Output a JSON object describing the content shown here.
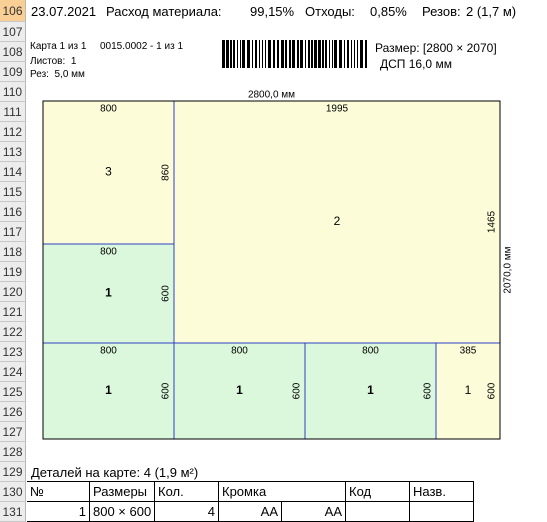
{
  "row_numbers": [
    106,
    107,
    108,
    109,
    110,
    111,
    112,
    113,
    114,
    115,
    116,
    117,
    118,
    119,
    120,
    121,
    122,
    123,
    124,
    125,
    126,
    127,
    128,
    129,
    130,
    131
  ],
  "header": {
    "date": "23.07.2021",
    "material_label": "Расход материала:",
    "material": "99,15%",
    "waste_label": "Отходы:",
    "waste": "0,85%",
    "cuts_label": "Резов:",
    "cuts": "2 (1,7 м)"
  },
  "card": {
    "card": "Карта 1 из 1",
    "code": "0015.0002 - 1 из 1",
    "sheets": "Листов:  1",
    "kerf": "Рез:  5,0 мм",
    "size": "Размер: [2800 × 2070]",
    "material": "ДСП 16,0 мм"
  },
  "map": {
    "width_label": "2800,0 мм",
    "height_label": "2070,0 мм",
    "pieces": [
      {
        "id": "3",
        "width": "800",
        "height": "860",
        "color": "#fdfcd9",
        "bold": false
      },
      {
        "id": "2",
        "width": "1995",
        "height": "1465",
        "color": "#fdfcd9",
        "bold": false
      },
      {
        "id": "1",
        "width": "800",
        "height": "600",
        "color": "#dcf8dc",
        "bold": true
      },
      {
        "id": "1",
        "width": "800",
        "height": "600",
        "color": "#dcf8dc",
        "bold": true
      },
      {
        "id": "1",
        "width": "800",
        "height": "600",
        "color": "#dcf8dc",
        "bold": true
      },
      {
        "id": "1",
        "width": "800",
        "height": "600",
        "color": "#dcf8dc",
        "bold": true
      },
      {
        "id": "1",
        "width": "385",
        "height": "600",
        "color": "#fdfcd9",
        "bold": false
      }
    ]
  },
  "summary": "Деталей на карте: 4 (1,9 м²)",
  "table": {
    "headers": [
      "№",
      "Размеры",
      "Кол.",
      "Кромка",
      "Код",
      "Назв."
    ],
    "rows": [
      [
        "1",
        "800 × 600",
        "4",
        "AA",
        "AA",
        "",
        ""
      ]
    ]
  }
}
